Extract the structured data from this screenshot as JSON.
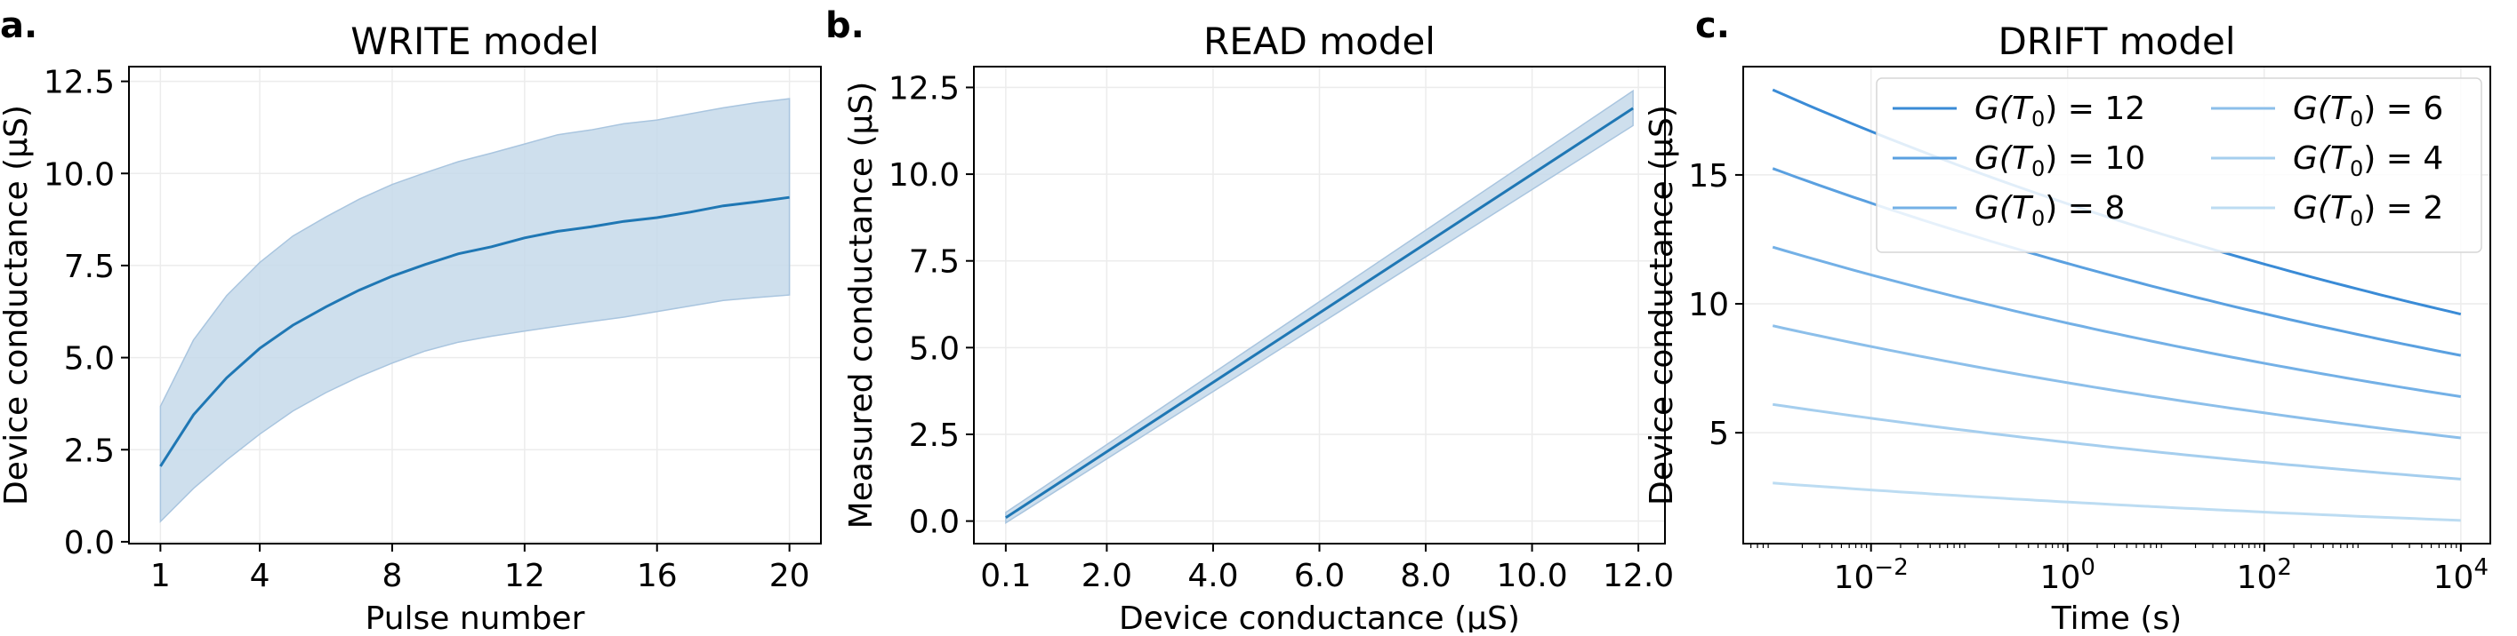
{
  "figure": {
    "panel_letters": [
      "a.",
      "b.",
      "c."
    ]
  },
  "chart_data": [
    {
      "type": "line",
      "panel": "a.",
      "title": "WRITE model",
      "xlabel": "Pulse number",
      "ylabel": "Device conductance (µS)",
      "xlim": [
        0.05,
        20.95
      ],
      "ylim": [
        -0.05,
        12.9
      ],
      "xticks": [
        1,
        4,
        8,
        12,
        16,
        20
      ],
      "xtick_labels": [
        "1",
        "4",
        "8",
        "12",
        "16",
        "20"
      ],
      "yticks": [
        0,
        2.5,
        5,
        7.5,
        10,
        12.5
      ],
      "ytick_labels": [
        "0.0",
        "2.5",
        "5.0",
        "7.5",
        "10.0",
        "12.5"
      ],
      "grid": true,
      "colors": {
        "line": "#1f77b4",
        "band": "#c6d9ea"
      },
      "x": [
        1,
        2,
        3,
        4,
        5,
        6,
        7,
        8,
        9,
        10,
        11,
        12,
        13,
        14,
        15,
        16,
        17,
        18,
        19,
        20
      ],
      "series": [
        {
          "values": [
            2.05,
            3.45,
            4.45,
            5.25,
            5.88,
            6.38,
            6.83,
            7.21,
            7.53,
            7.82,
            8.01,
            8.25,
            8.43,
            8.55,
            8.7,
            8.8,
            8.95,
            9.12,
            9.23,
            9.35
          ]
        }
      ],
      "band_upper": [
        3.68,
        5.48,
        6.68,
        7.58,
        8.3,
        8.82,
        9.3,
        9.7,
        10.02,
        10.32,
        10.55,
        10.8,
        11.05,
        11.18,
        11.35,
        11.45,
        11.62,
        11.78,
        11.92,
        12.03
      ],
      "band_lower": [
        0.55,
        1.45,
        2.22,
        2.92,
        3.55,
        4.05,
        4.48,
        4.85,
        5.18,
        5.42,
        5.58,
        5.72,
        5.85,
        5.98,
        6.1,
        6.25,
        6.4,
        6.55,
        6.63,
        6.7
      ]
    },
    {
      "type": "line",
      "panel": "b.",
      "title": "READ model",
      "xlabel": "Device conductance (µS)",
      "ylabel": "Measured conductance (µS)",
      "xlim": [
        -0.5,
        12.5
      ],
      "ylim": [
        -0.65,
        13.1
      ],
      "xticks": [
        0.1,
        2.0,
        4.0,
        6.0,
        8.0,
        10.0,
        12.0
      ],
      "xtick_labels": [
        "0.1",
        "2.0",
        "4.0",
        "6.0",
        "8.0",
        "10.0",
        "12.0"
      ],
      "yticks": [
        0,
        2.5,
        5,
        7.5,
        10,
        12.5
      ],
      "ytick_labels": [
        "0.0",
        "2.5",
        "5.0",
        "7.5",
        "10.0",
        "12.5"
      ],
      "grid": true,
      "colors": {
        "line": "#1f77b4",
        "band": "#c6d9ea"
      },
      "x": [
        0.1,
        11.9
      ],
      "series": [
        {
          "values": [
            0.1,
            11.9
          ]
        }
      ],
      "band_upper": [
        0.25,
        12.4
      ],
      "band_lower": [
        -0.05,
        11.4
      ]
    },
    {
      "type": "line",
      "panel": "c.",
      "title": "DRIFT model",
      "xlabel": "Time (s)",
      "ylabel": "Device conductance (µS)",
      "xscale": "log",
      "xlim_log10": [
        -3.3,
        4.3
      ],
      "ylim": [
        0.7,
        19.2
      ],
      "xticks_log10": [
        -2,
        0,
        2,
        4
      ],
      "xtick_labels": [
        {
          "base": "10",
          "exp": "−2"
        },
        {
          "base": "10",
          "exp": "0"
        },
        {
          "base": "10",
          "exp": "2"
        },
        {
          "base": "10",
          "exp": "4"
        }
      ],
      "yticks": [
        5,
        10,
        15
      ],
      "ytick_labels": [
        "5",
        "10",
        "15"
      ],
      "grid": true,
      "legend_position": "top-right",
      "legend_columns": 2,
      "x_log10": [
        -3,
        4
      ],
      "series": [
        {
          "name": "G(T₀) = 12",
          "g0": "12",
          "color": "#3a8bd6",
          "start": 18.3,
          "end": 9.6
        },
        {
          "name": "G(T₀) = 10",
          "g0": "10",
          "color": "#5aa0e0",
          "start": 15.25,
          "end": 8.0
        },
        {
          "name": "G(T₀) = 8",
          "g0": "8",
          "color": "#73b0e6",
          "start": 12.2,
          "end": 6.4
        },
        {
          "name": "G(T₀) = 6",
          "g0": "6",
          "color": "#8cbfea",
          "start": 9.15,
          "end": 4.8
        },
        {
          "name": "G(T₀) = 4",
          "g0": "4",
          "color": "#a5ceee",
          "start": 6.1,
          "end": 3.2
        },
        {
          "name": "G(T₀) = 2",
          "g0": "2",
          "color": "#bcdcf2",
          "start": 3.05,
          "end": 1.6
        }
      ]
    }
  ]
}
